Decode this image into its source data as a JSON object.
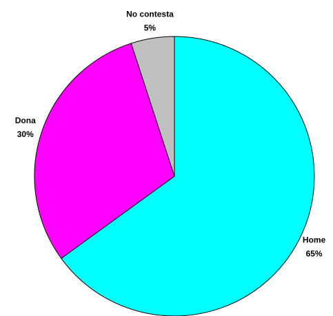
{
  "chart_data": {
    "type": "pie",
    "categories": [
      "Home",
      "Dona",
      "No contesta"
    ],
    "values": [
      65,
      30,
      5
    ],
    "value_labels": [
      "65%",
      "30%",
      "5%"
    ],
    "colors": [
      "#00ffff",
      "#ff00ff",
      "#c0c0c0"
    ]
  }
}
